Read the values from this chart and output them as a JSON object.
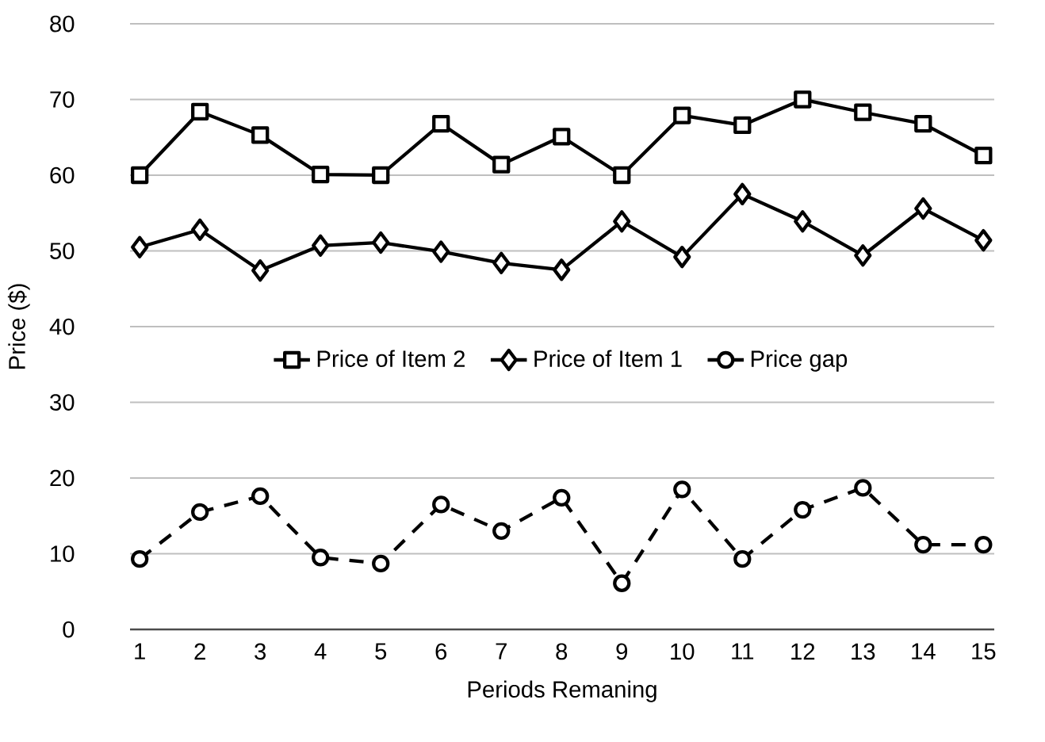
{
  "chart_data": {
    "type": "line",
    "xlabel": "Periods Remaning",
    "ylabel": "Price ($)",
    "categories": [
      "1",
      "2",
      "3",
      "4",
      "5",
      "6",
      "7",
      "8",
      "9",
      "10",
      "11",
      "12",
      "13",
      "14",
      "15"
    ],
    "series": [
      {
        "name": "Price of Item 2",
        "color": "#000000",
        "marker": "square",
        "line_style": "solid",
        "values": [
          60,
          68.4,
          65.3,
          60.1,
          60,
          66.8,
          61.4,
          65.1,
          60,
          67.9,
          66.6,
          70,
          68.3,
          66.8,
          62.6
        ]
      },
      {
        "name": "Price of Item 1",
        "color": "#000000",
        "marker": "diamond",
        "line_style": "solid",
        "values": [
          50.5,
          52.8,
          47.4,
          50.7,
          51.1,
          49.9,
          48.4,
          47.5,
          53.9,
          49.2,
          57.5,
          53.9,
          49.4,
          55.6,
          51.4
        ]
      },
      {
        "name": "Price gap",
        "color": "#000000",
        "marker": "circle",
        "line_style": "dashed",
        "values": [
          9.3,
          15.5,
          17.6,
          9.5,
          8.7,
          16.5,
          13,
          17.4,
          6.1,
          18.5,
          9.3,
          15.8,
          18.7,
          11.2,
          11.2
        ]
      }
    ],
    "ylim": [
      0,
      80
    ],
    "yticks": [
      0,
      10,
      20,
      30,
      40,
      50,
      60,
      70,
      80
    ],
    "grid": "y",
    "legend": "center"
  }
}
